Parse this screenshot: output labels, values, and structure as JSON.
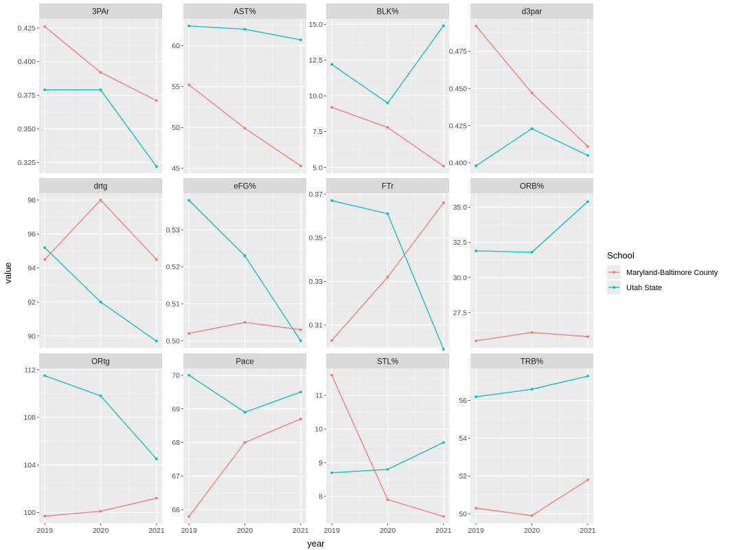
{
  "chart_data": {
    "type": "line",
    "facet_layout": {
      "columns": 4,
      "rows": 3
    },
    "xlabel": "year",
    "ylabel": "value",
    "x": [
      2019,
      2020,
      2021
    ],
    "x_tick_labels": [
      "2019",
      "2020",
      "2021"
    ],
    "legend": {
      "title": "School",
      "placement": "right",
      "entries": [
        {
          "name": "Maryland-Baltimore County",
          "color": "#F8766D"
        },
        {
          "name": "Utah State",
          "color": "#00BFC4"
        }
      ]
    },
    "grid": true,
    "panels": [
      {
        "title": "3PAr",
        "ylim": [
          0.317,
          0.432
        ],
        "yticks": [
          0.325,
          0.35,
          0.375,
          0.4,
          0.425
        ],
        "ytick_labels": [
          "0.325",
          "0.350",
          "0.375",
          "0.400",
          "0.425"
        ],
        "series": [
          {
            "name": "Maryland-Baltimore County",
            "values": [
              0.426,
              0.392,
              0.371
            ]
          },
          {
            "name": "Utah State",
            "values": [
              0.379,
              0.379,
              0.322
            ]
          }
        ]
      },
      {
        "title": "AST%",
        "ylim": [
          44.4,
          63.3
        ],
        "yticks": [
          45,
          50,
          55,
          60
        ],
        "ytick_labels": [
          "45",
          "50",
          "55",
          "60"
        ],
        "series": [
          {
            "name": "Maryland-Baltimore County",
            "values": [
              55.2,
              49.9,
              45.3
            ]
          },
          {
            "name": "Utah State",
            "values": [
              62.4,
              62.0,
              60.7
            ]
          }
        ]
      },
      {
        "title": "BLK%",
        "ylim": [
          4.6,
          15.4
        ],
        "yticks": [
          5,
          7.5,
          10,
          12.5,
          15
        ],
        "ytick_labels": [
          "5.0",
          "7.5",
          "10.0",
          "12.5",
          "15.0"
        ],
        "series": [
          {
            "name": "Maryland-Baltimore County",
            "values": [
              9.2,
              7.8,
              5.1
            ]
          },
          {
            "name": "Utah State",
            "values": [
              12.2,
              9.5,
              14.9
            ]
          }
        ]
      },
      {
        "title": "d3par",
        "ylim": [
          0.393,
          0.497
        ],
        "yticks": [
          0.4,
          0.425,
          0.45,
          0.475
        ],
        "ytick_labels": [
          "0.400",
          "0.425",
          "0.450",
          "0.475"
        ],
        "series": [
          {
            "name": "Maryland-Baltimore County",
            "values": [
              0.492,
              0.447,
              0.411
            ]
          },
          {
            "name": "Utah State",
            "values": [
              0.398,
              0.423,
              0.405
            ]
          }
        ]
      },
      {
        "title": "drtg",
        "ylim": [
          89.3,
          98.4
        ],
        "yticks": [
          90,
          92,
          94,
          96,
          98
        ],
        "ytick_labels": [
          "90",
          "92",
          "94",
          "96",
          "98"
        ],
        "series": [
          {
            "name": "Maryland-Baltimore County",
            "values": [
              94.5,
              98.0,
              94.5
            ]
          },
          {
            "name": "Utah State",
            "values": [
              95.2,
              92.0,
              89.7
            ]
          }
        ]
      },
      {
        "title": "eFG%",
        "ylim": [
          0.4981,
          0.5399
        ],
        "yticks": [
          0.5,
          0.51,
          0.52,
          0.53
        ],
        "ytick_labels": [
          "0.50",
          "0.51",
          "0.52",
          "0.53"
        ],
        "series": [
          {
            "name": "Maryland-Baltimore County",
            "values": [
              0.502,
              0.505,
              0.503
            ]
          },
          {
            "name": "Utah State",
            "values": [
              0.538,
              0.523,
              0.5
            ]
          }
        ]
      },
      {
        "title": "FTr",
        "ylim": [
          0.2996,
          0.3704
        ],
        "yticks": [
          0.31,
          0.33,
          0.35,
          0.37
        ],
        "ytick_labels": [
          "0.31",
          "0.33",
          "0.35",
          "0.37"
        ],
        "series": [
          {
            "name": "Maryland-Baltimore County",
            "values": [
              0.303,
              0.332,
              0.366
            ]
          },
          {
            "name": "Utah State",
            "values": [
              0.367,
              0.361,
              0.299
            ]
          }
        ]
      },
      {
        "title": "ORB%",
        "ylim": [
          25.0,
          36.0
        ],
        "yticks": [
          27.5,
          30,
          32.5,
          35
        ],
        "ytick_labels": [
          "27.5",
          "30.0",
          "32.5",
          "35.0"
        ],
        "series": [
          {
            "name": "Maryland-Baltimore County",
            "values": [
              25.5,
              26.1,
              25.8
            ]
          },
          {
            "name": "Utah State",
            "values": [
              31.9,
              31.8,
              35.4
            ]
          }
        ]
      },
      {
        "title": "ORtg",
        "ylim": [
          99.1,
          112.1
        ],
        "yticks": [
          100,
          104,
          108,
          112
        ],
        "ytick_labels": [
          "100",
          "104",
          "108",
          "112"
        ],
        "series": [
          {
            "name": "Maryland-Baltimore County",
            "values": [
              99.7,
              100.1,
              101.2
            ]
          },
          {
            "name": "Utah State",
            "values": [
              111.5,
              109.8,
              104.5
            ]
          }
        ]
      },
      {
        "title": "Pace",
        "ylim": [
          65.6,
          70.2
        ],
        "yticks": [
          66,
          67,
          68,
          69,
          70
        ],
        "ytick_labels": [
          "66",
          "67",
          "68",
          "69",
          "70"
        ],
        "series": [
          {
            "name": "Maryland-Baltimore County",
            "values": [
              65.8,
              68.0,
              68.7
            ]
          },
          {
            "name": "Utah State",
            "values": [
              70.0,
              68.9,
              69.5
            ]
          }
        ]
      },
      {
        "title": "STL%",
        "ylim": [
          7.2,
          11.8
        ],
        "yticks": [
          8,
          9,
          10,
          11
        ],
        "ytick_labels": [
          "8",
          "9",
          "10",
          "11"
        ],
        "series": [
          {
            "name": "Maryland-Baltimore County",
            "values": [
              11.6,
              7.9,
              7.4
            ]
          },
          {
            "name": "Utah State",
            "values": [
              8.7,
              8.8,
              9.6
            ]
          }
        ]
      },
      {
        "title": "TRB%",
        "ylim": [
          49.5,
          57.7
        ],
        "yticks": [
          50,
          52,
          54,
          56
        ],
        "ytick_labels": [
          "50",
          "52",
          "54",
          "56"
        ],
        "series": [
          {
            "name": "Maryland-Baltimore County",
            "values": [
              50.3,
              49.9,
              51.8
            ]
          },
          {
            "name": "Utah State",
            "values": [
              56.2,
              56.6,
              57.3
            ]
          }
        ]
      }
    ]
  }
}
